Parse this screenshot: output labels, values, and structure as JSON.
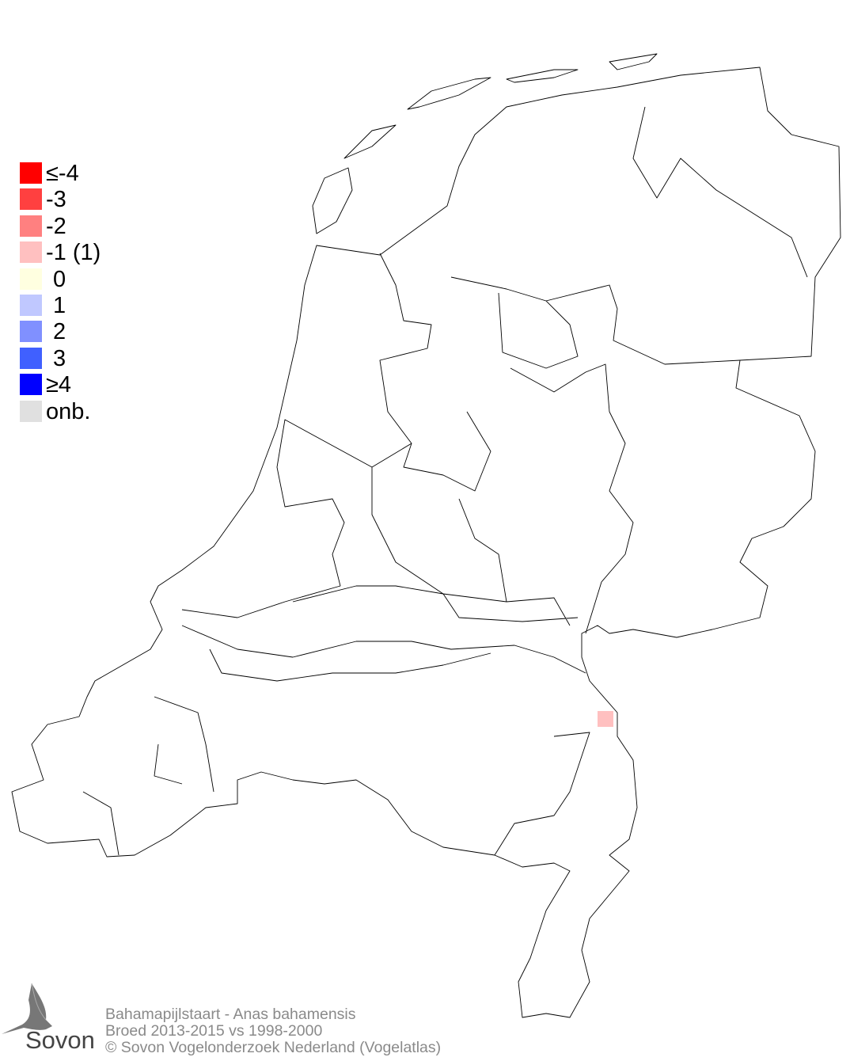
{
  "legend": {
    "items": [
      {
        "label": "≤-4",
        "color": "#ff0000"
      },
      {
        "label": "-3",
        "color": "#ff4040"
      },
      {
        "label": "-2",
        "color": "#ff8080"
      },
      {
        "label": "-1 (1)",
        "color": "#ffc0c0"
      },
      {
        "label": "0",
        "color": "#ffffe0"
      },
      {
        "label": "1",
        "color": "#c0c8ff"
      },
      {
        "label": "2",
        "color": "#8090ff"
      },
      {
        "label": "3",
        "color": "#4060ff"
      },
      {
        "label": "≥4",
        "color": "#0000ff"
      },
      {
        "label": "onb.",
        "color": "#e0e0e0"
      }
    ]
  },
  "map": {
    "highlighted_cells": [
      {
        "category": "-1",
        "color": "#ffc0c0"
      }
    ]
  },
  "footer": {
    "line1": "Bahamapijlstaart - Anas bahamensis",
    "line2": "Broed 2013-2015 vs 1998-2000",
    "line3": "© Sovon Vogelonderzoek Nederland (Vogelatlas)"
  },
  "logo": {
    "text": "Sovon"
  }
}
